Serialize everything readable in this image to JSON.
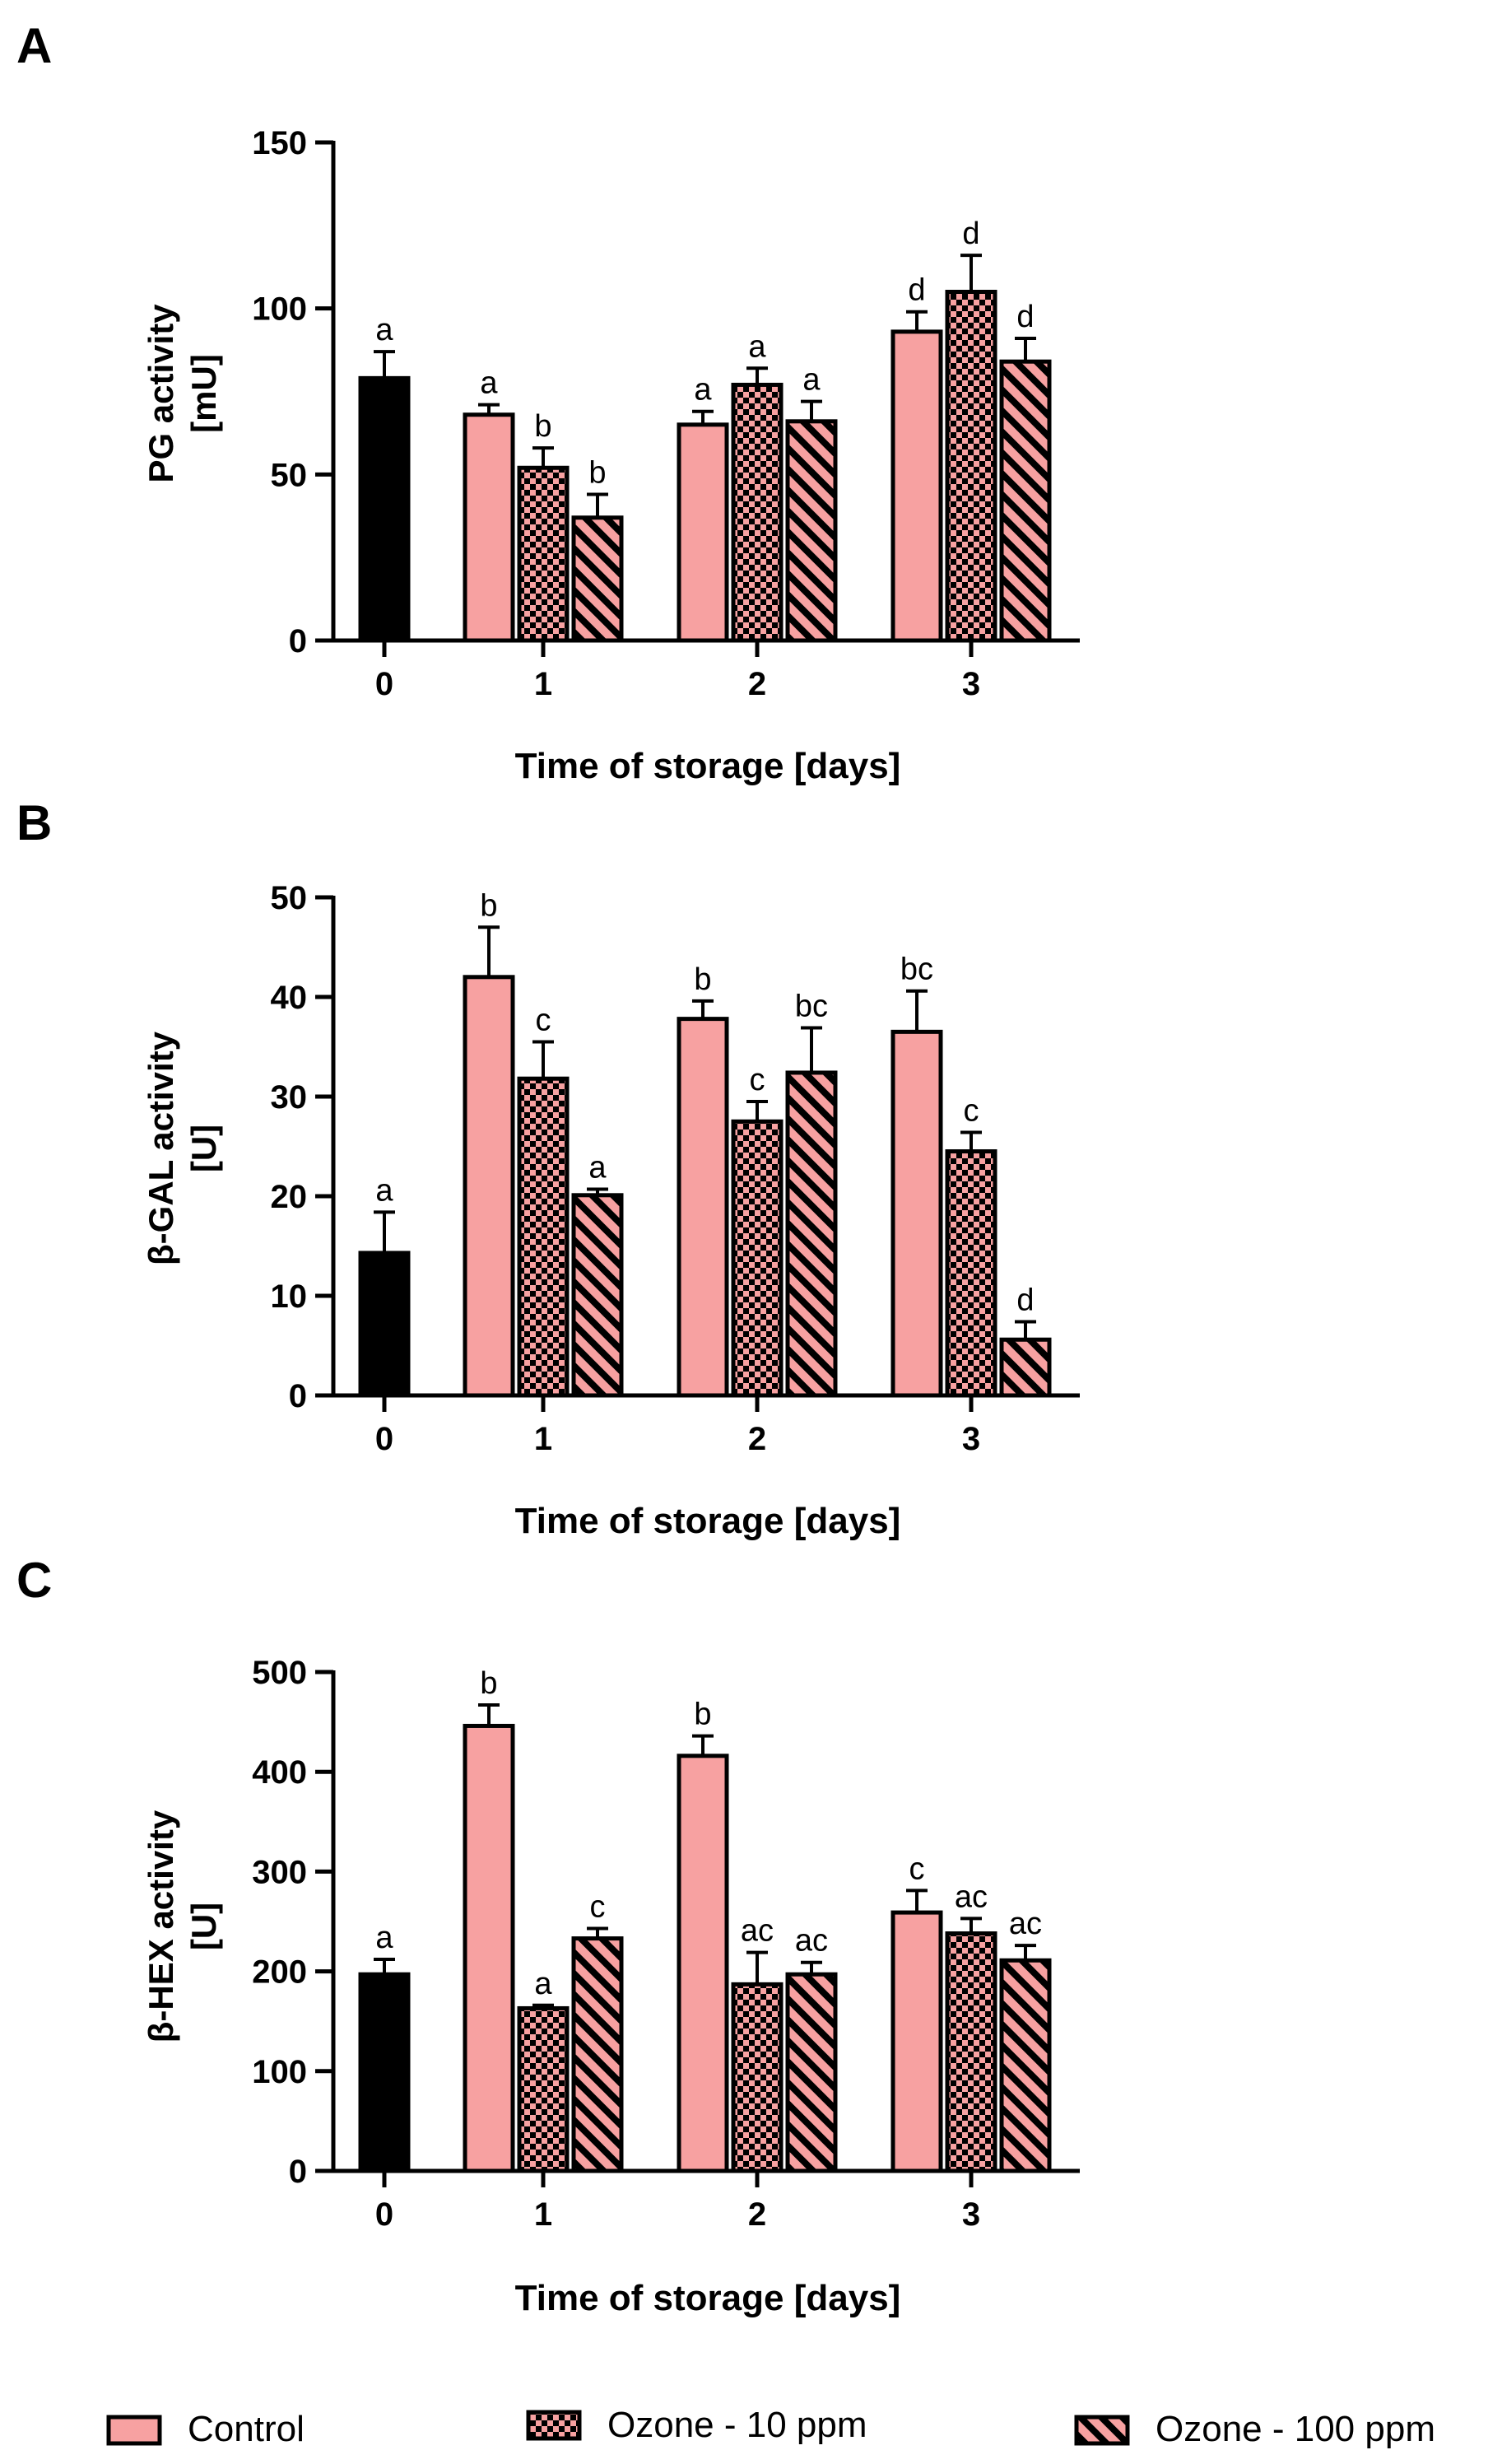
{
  "figure": {
    "legend": {
      "items": [
        {
          "name": "Control",
          "pattern": "solid"
        },
        {
          "name": "Ozone - 10 ppm",
          "pattern": "checker"
        },
        {
          "name": "Ozone - 100 ppm",
          "pattern": "diagonal"
        }
      ]
    }
  },
  "colors": {
    "control_fill": "#f7a1a1",
    "baseline_fill": "#000000",
    "axis": "#000000",
    "pattern_dark": "#000000"
  },
  "chart_data": [
    {
      "type": "bar",
      "panel": "A",
      "xlabel": "Time of storage [days]",
      "ylabel": [
        "PG activity",
        "[mU]"
      ],
      "ylim": [
        0,
        150
      ],
      "yticks": [
        0,
        50,
        100,
        150
      ],
      "categories": [
        "0",
        "1",
        "2",
        "3"
      ],
      "baseline": {
        "category": "0",
        "value": 79,
        "err": 8,
        "letter": "a"
      },
      "series": [
        {
          "name": "Control",
          "values": [
            null,
            68,
            65,
            93
          ],
          "errors": [
            null,
            3,
            4,
            6
          ],
          "letters": [
            null,
            "a",
            "a",
            "d"
          ]
        },
        {
          "name": "Ozone - 10 ppm",
          "values": [
            null,
            52,
            77,
            105
          ],
          "errors": [
            null,
            6,
            5,
            11
          ],
          "letters": [
            null,
            "b",
            "a",
            "d"
          ]
        },
        {
          "name": "Ozone - 100 ppm",
          "values": [
            null,
            37,
            66,
            84
          ],
          "errors": [
            null,
            7,
            6,
            7
          ],
          "letters": [
            null,
            "b",
            "a",
            "d"
          ]
        }
      ]
    },
    {
      "type": "bar",
      "panel": "B",
      "xlabel": "Time of storage [days]",
      "ylabel": [
        "β-GAL activity",
        "[U]"
      ],
      "ylim": [
        0,
        50
      ],
      "yticks": [
        0,
        10,
        20,
        30,
        40,
        50
      ],
      "categories": [
        "0",
        "1",
        "2",
        "3"
      ],
      "baseline": {
        "category": "0",
        "value": 14.3,
        "err": 4.1,
        "letter": "a"
      },
      "series": [
        {
          "name": "Control",
          "values": [
            null,
            42,
            37.8,
            36.5
          ],
          "errors": [
            null,
            5,
            1.8,
            4.1
          ],
          "letters": [
            null,
            "b",
            "b",
            "bc"
          ]
        },
        {
          "name": "Ozone - 10 ppm",
          "values": [
            null,
            31.8,
            27.5,
            24.5
          ],
          "errors": [
            null,
            3.7,
            2,
            1.9
          ],
          "letters": [
            null,
            "c",
            "c",
            "c"
          ]
        },
        {
          "name": "Ozone - 100 ppm",
          "values": [
            null,
            20.1,
            32.4,
            5.6
          ],
          "errors": [
            null,
            0.6,
            4.5,
            1.8
          ],
          "letters": [
            null,
            "a",
            "bc",
            "d"
          ]
        }
      ]
    },
    {
      "type": "bar",
      "panel": "C",
      "xlabel": "Time of storage [days]",
      "ylabel": [
        "β-HEX activity",
        "[U]"
      ],
      "ylim": [
        0,
        500
      ],
      "yticks": [
        0,
        100,
        200,
        300,
        400,
        500
      ],
      "categories": [
        "0",
        "1",
        "2",
        "3"
      ],
      "baseline": {
        "category": "0",
        "value": 197,
        "err": 15,
        "letter": "a"
      },
      "series": [
        {
          "name": "Control",
          "values": [
            null,
            446,
            416,
            259
          ],
          "errors": [
            null,
            21,
            20,
            22
          ],
          "letters": [
            null,
            "b",
            "b",
            "c"
          ]
        },
        {
          "name": "Ozone - 10 ppm",
          "values": [
            null,
            163,
            187,
            238
          ],
          "errors": [
            null,
            3,
            32,
            15
          ],
          "letters": [
            null,
            "a",
            "ac",
            "ac"
          ]
        },
        {
          "name": "Ozone - 100 ppm",
          "values": [
            null,
            233,
            197,
            211
          ],
          "errors": [
            null,
            10,
            12,
            15
          ],
          "letters": [
            null,
            "c",
            "ac",
            "ac"
          ]
        }
      ]
    }
  ]
}
